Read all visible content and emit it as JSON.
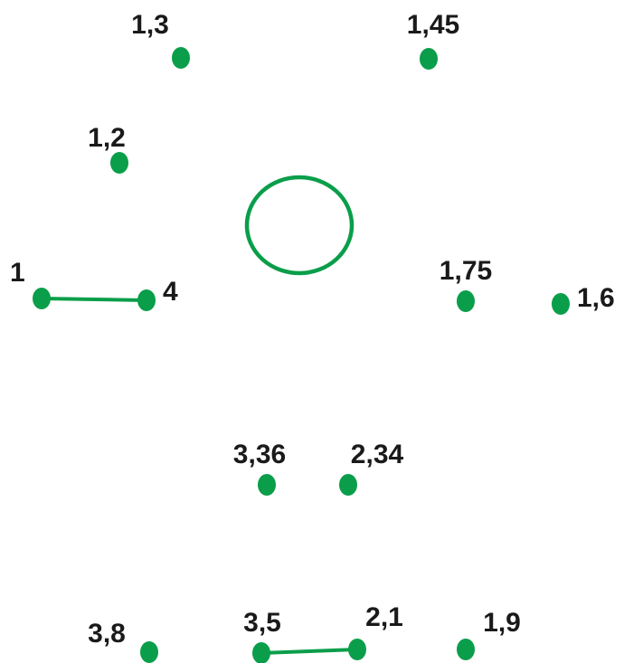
{
  "theme": {
    "color": "#0a9e4a",
    "background": "#ffffff"
  },
  "dots": [
    {
      "id": "d1",
      "label": "1,3"
    },
    {
      "id": "d2",
      "label": "1,45"
    },
    {
      "id": "d3",
      "label": "1,2"
    },
    {
      "id": "d4",
      "label": "1"
    },
    {
      "id": "d5",
      "label": "4"
    },
    {
      "id": "d6",
      "label": "1,75"
    },
    {
      "id": "d7",
      "label": "1,6"
    },
    {
      "id": "d8",
      "label": "3,36"
    },
    {
      "id": "d9",
      "label": "2,34"
    },
    {
      "id": "d10",
      "label": "3,8"
    },
    {
      "id": "d11",
      "label": "3,5"
    },
    {
      "id": "d12",
      "label": "2,1"
    },
    {
      "id": "d13",
      "label": "1,9"
    }
  ],
  "connections": [
    {
      "from": "d4",
      "to": "d5"
    },
    {
      "from": "d11",
      "to": "d12"
    }
  ],
  "shapes": [
    {
      "type": "circle-outline",
      "name": "center-circle"
    }
  ]
}
